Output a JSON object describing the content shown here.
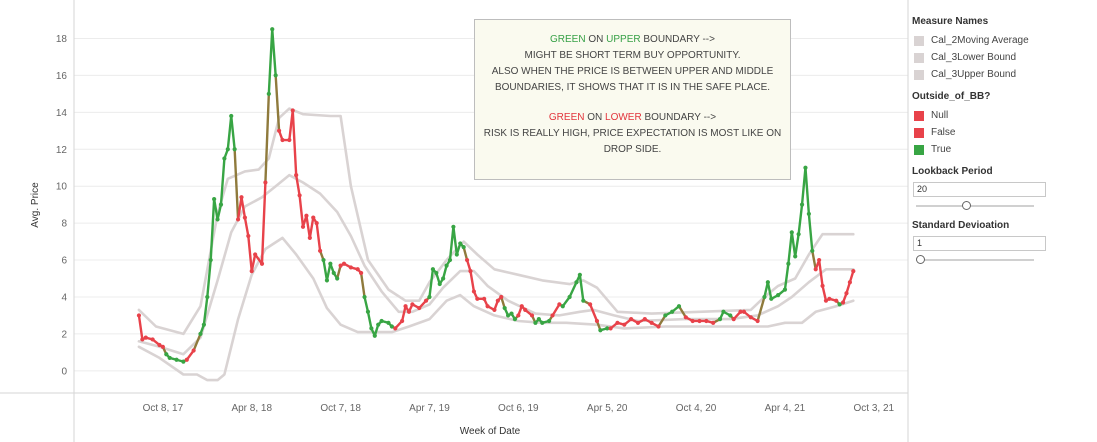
{
  "chart_data": {
    "type": "line",
    "title": "",
    "xlabel": "Week of Date",
    "ylabel": "Avg. Price",
    "ylim": [
      -1.2,
      19
    ],
    "yticks": [
      0,
      2,
      4,
      6,
      8,
      10,
      12,
      14,
      16,
      18
    ],
    "xtick_labels": [
      "Oct 8, 17",
      "Apr 8, 18",
      "Oct 7, 18",
      "Apr 7, 19",
      "Oct 6, 19",
      "Apr 5, 20",
      "Oct 4, 20",
      "Apr 4, 21",
      "Oct 3, 21"
    ],
    "xtick_values": [
      "2017-10-08",
      "2018-04-08",
      "2018-10-07",
      "2019-04-07",
      "2019-10-06",
      "2020-04-05",
      "2020-10-04",
      "2021-04-04",
      "2021-10-03"
    ],
    "grid": "horizontal",
    "colors": {
      "band": "#d9d3d3",
      "red": "#e8424a",
      "green": "#38a544"
    },
    "price": [
      [
        "2017-08-20",
        3.0,
        "False"
      ],
      [
        "2017-08-27",
        1.7,
        "False"
      ],
      [
        "2017-09-03",
        1.8,
        "False"
      ],
      [
        "2017-09-17",
        1.7,
        "False"
      ],
      [
        "2017-10-01",
        1.4,
        "False"
      ],
      [
        "2017-10-08",
        1.3,
        "False"
      ],
      [
        "2017-10-15",
        0.9,
        "True"
      ],
      [
        "2017-10-22",
        0.7,
        "True"
      ],
      [
        "2017-11-05",
        0.6,
        "True"
      ],
      [
        "2017-11-19",
        0.5,
        "True"
      ],
      [
        "2017-11-26",
        0.6,
        "False"
      ],
      [
        "2017-12-10",
        1.1,
        "False"
      ],
      [
        "2017-12-24",
        2.0,
        "True"
      ],
      [
        "2017-12-31",
        2.5,
        "True"
      ],
      [
        "2018-01-07",
        4.0,
        "True"
      ],
      [
        "2018-01-14",
        6.0,
        "True"
      ],
      [
        "2018-01-21",
        9.3,
        "True"
      ],
      [
        "2018-01-28",
        8.2,
        "True"
      ],
      [
        "2018-02-04",
        9.0,
        "True"
      ],
      [
        "2018-02-11",
        11.5,
        "True"
      ],
      [
        "2018-02-18",
        12.0,
        "True"
      ],
      [
        "2018-02-25",
        13.8,
        "True"
      ],
      [
        "2018-03-04",
        12.0,
        "True"
      ],
      [
        "2018-03-11",
        8.2,
        "False"
      ],
      [
        "2018-03-18",
        9.4,
        "False"
      ],
      [
        "2018-03-25",
        8.3,
        "False"
      ],
      [
        "2018-04-01",
        7.3,
        "False"
      ],
      [
        "2018-04-08",
        5.4,
        "False"
      ],
      [
        "2018-04-15",
        6.3,
        "False"
      ],
      [
        "2018-04-29",
        5.8,
        "False"
      ],
      [
        "2018-05-06",
        10.2,
        "False"
      ],
      [
        "2018-05-13",
        15.0,
        "True"
      ],
      [
        "2018-05-20",
        18.5,
        "True"
      ],
      [
        "2018-05-27",
        16.0,
        "True"
      ],
      [
        "2018-06-03",
        13.0,
        "False"
      ],
      [
        "2018-06-10",
        12.5,
        "False"
      ],
      [
        "2018-06-24",
        12.5,
        "False"
      ],
      [
        "2018-07-01",
        14.1,
        "False"
      ],
      [
        "2018-07-08",
        10.6,
        "False"
      ],
      [
        "2018-07-15",
        9.5,
        "False"
      ],
      [
        "2018-07-22",
        7.8,
        "False"
      ],
      [
        "2018-07-29",
        8.4,
        "False"
      ],
      [
        "2018-08-05",
        7.2,
        "False"
      ],
      [
        "2018-08-12",
        8.3,
        "False"
      ],
      [
        "2018-08-19",
        8.0,
        "False"
      ],
      [
        "2018-08-26",
        6.5,
        "False"
      ],
      [
        "2018-09-02",
        6.0,
        "True"
      ],
      [
        "2018-09-09",
        4.9,
        "True"
      ],
      [
        "2018-09-16",
        5.8,
        "True"
      ],
      [
        "2018-09-23",
        5.3,
        "True"
      ],
      [
        "2018-09-30",
        5.0,
        "True"
      ],
      [
        "2018-10-07",
        5.7,
        "False"
      ],
      [
        "2018-10-14",
        5.8,
        "False"
      ],
      [
        "2018-10-28",
        5.6,
        "False"
      ],
      [
        "2018-11-11",
        5.5,
        "False"
      ],
      [
        "2018-11-18",
        5.3,
        "False"
      ],
      [
        "2018-11-25",
        4.0,
        "True"
      ],
      [
        "2018-12-02",
        3.2,
        "True"
      ],
      [
        "2018-12-09",
        2.3,
        "True"
      ],
      [
        "2018-12-16",
        1.9,
        "True"
      ],
      [
        "2018-12-23",
        2.5,
        "True"
      ],
      [
        "2018-12-30",
        2.7,
        "True"
      ],
      [
        "2019-01-13",
        2.6,
        "True"
      ],
      [
        "2019-01-20",
        2.4,
        "True"
      ],
      [
        "2019-01-27",
        2.3,
        "False"
      ],
      [
        "2019-02-10",
        2.7,
        "False"
      ],
      [
        "2019-02-17",
        3.5,
        "False"
      ],
      [
        "2019-02-24",
        3.2,
        "False"
      ],
      [
        "2019-03-03",
        3.6,
        "False"
      ],
      [
        "2019-03-17",
        3.4,
        "False"
      ],
      [
        "2019-03-31",
        3.8,
        "False"
      ],
      [
        "2019-04-07",
        4.0,
        "True"
      ],
      [
        "2019-04-14",
        5.5,
        "True"
      ],
      [
        "2019-04-21",
        5.3,
        "True"
      ],
      [
        "2019-04-28",
        4.7,
        "True"
      ],
      [
        "2019-05-05",
        5.0,
        "True"
      ],
      [
        "2019-05-12",
        5.7,
        "True"
      ],
      [
        "2019-05-19",
        6.0,
        "True"
      ],
      [
        "2019-05-26",
        7.8,
        "True"
      ],
      [
        "2019-06-02",
        6.3,
        "True"
      ],
      [
        "2019-06-09",
        6.9,
        "True"
      ],
      [
        "2019-06-16",
        6.7,
        "True"
      ],
      [
        "2019-06-23",
        6.0,
        "False"
      ],
      [
        "2019-06-30",
        5.4,
        "False"
      ],
      [
        "2019-07-07",
        4.3,
        "False"
      ],
      [
        "2019-07-14",
        3.9,
        "False"
      ],
      [
        "2019-07-28",
        3.9,
        "False"
      ],
      [
        "2019-08-04",
        3.5,
        "False"
      ],
      [
        "2019-08-18",
        3.3,
        "False"
      ],
      [
        "2019-08-25",
        3.8,
        "False"
      ],
      [
        "2019-09-01",
        4.0,
        "False"
      ],
      [
        "2019-09-08",
        3.4,
        "True"
      ],
      [
        "2019-09-15",
        3.0,
        "True"
      ],
      [
        "2019-09-22",
        3.1,
        "True"
      ],
      [
        "2019-09-29",
        2.8,
        "True"
      ],
      [
        "2019-10-06",
        3.0,
        "False"
      ],
      [
        "2019-10-13",
        3.5,
        "False"
      ],
      [
        "2019-10-20",
        3.3,
        "False"
      ],
      [
        "2019-11-03",
        3.0,
        "False"
      ],
      [
        "2019-11-10",
        2.6,
        "True"
      ],
      [
        "2019-11-17",
        2.8,
        "True"
      ],
      [
        "2019-11-24",
        2.6,
        "True"
      ],
      [
        "2019-12-08",
        2.7,
        "True"
      ],
      [
        "2019-12-15",
        3.0,
        "False"
      ],
      [
        "2019-12-29",
        3.6,
        "False"
      ],
      [
        "2020-01-05",
        3.5,
        "True"
      ],
      [
        "2020-01-19",
        4.0,
        "True"
      ],
      [
        "2020-02-02",
        4.8,
        "True"
      ],
      [
        "2020-02-09",
        5.2,
        "True"
      ],
      [
        "2020-02-16",
        3.8,
        "True"
      ],
      [
        "2020-03-01",
        3.6,
        "False"
      ],
      [
        "2020-03-15",
        2.7,
        "False"
      ],
      [
        "2020-03-22",
        2.2,
        "True"
      ],
      [
        "2020-04-05",
        2.3,
        "True"
      ],
      [
        "2020-04-12",
        2.3,
        "False"
      ],
      [
        "2020-04-26",
        2.6,
        "False"
      ],
      [
        "2020-05-10",
        2.5,
        "False"
      ],
      [
        "2020-05-24",
        2.8,
        "False"
      ],
      [
        "2020-06-07",
        2.6,
        "False"
      ],
      [
        "2020-06-21",
        2.8,
        "False"
      ],
      [
        "2020-07-05",
        2.6,
        "False"
      ],
      [
        "2020-07-19",
        2.4,
        "False"
      ],
      [
        "2020-08-02",
        3.0,
        "True"
      ],
      [
        "2020-08-16",
        3.2,
        "True"
      ],
      [
        "2020-08-30",
        3.5,
        "True"
      ],
      [
        "2020-09-13",
        2.9,
        "False"
      ],
      [
        "2020-09-27",
        2.7,
        "False"
      ],
      [
        "2020-10-11",
        2.7,
        "False"
      ],
      [
        "2020-10-25",
        2.7,
        "False"
      ],
      [
        "2020-11-08",
        2.6,
        "False"
      ],
      [
        "2020-11-22",
        2.8,
        "True"
      ],
      [
        "2020-11-29",
        3.2,
        "True"
      ],
      [
        "2020-12-13",
        3.0,
        "True"
      ],
      [
        "2020-12-20",
        2.8,
        "False"
      ],
      [
        "2021-01-03",
        3.2,
        "False"
      ],
      [
        "2021-01-10",
        3.2,
        "False"
      ],
      [
        "2021-01-24",
        2.9,
        "False"
      ],
      [
        "2021-02-07",
        2.7,
        "False"
      ],
      [
        "2021-02-21",
        4.0,
        "True"
      ],
      [
        "2021-02-28",
        4.8,
        "True"
      ],
      [
        "2021-03-07",
        3.9,
        "True"
      ],
      [
        "2021-03-21",
        4.1,
        "True"
      ],
      [
        "2021-04-04",
        4.4,
        "True"
      ],
      [
        "2021-04-11",
        5.8,
        "True"
      ],
      [
        "2021-04-18",
        7.5,
        "True"
      ],
      [
        "2021-04-25",
        6.2,
        "True"
      ],
      [
        "2021-05-02",
        7.4,
        "True"
      ],
      [
        "2021-05-09",
        9.0,
        "True"
      ],
      [
        "2021-05-16",
        11.0,
        "True"
      ],
      [
        "2021-05-23",
        8.5,
        "True"
      ],
      [
        "2021-05-30",
        6.5,
        "True"
      ],
      [
        "2021-06-06",
        5.5,
        "False"
      ],
      [
        "2021-06-13",
        6.0,
        "False"
      ],
      [
        "2021-06-20",
        4.6,
        "False"
      ],
      [
        "2021-06-27",
        3.8,
        "False"
      ],
      [
        "2021-07-04",
        3.9,
        "False"
      ],
      [
        "2021-07-18",
        3.8,
        "False"
      ],
      [
        "2021-07-25",
        3.6,
        "True"
      ],
      [
        "2021-08-01",
        3.7,
        "False"
      ],
      [
        "2021-08-08",
        4.2,
        "False"
      ],
      [
        "2021-08-15",
        4.8,
        "False"
      ],
      [
        "2021-08-22",
        5.4,
        "False"
      ]
    ],
    "upper_band": [
      [
        "2017-08-20",
        3.3
      ],
      [
        "2017-09-24",
        2.4
      ],
      [
        "2017-11-19",
        2.0
      ],
      [
        "2017-12-24",
        3.5
      ],
      [
        "2018-01-28",
        8.5
      ],
      [
        "2018-02-18",
        10.4
      ],
      [
        "2018-03-25",
        10.8
      ],
      [
        "2018-04-22",
        10.9
      ],
      [
        "2018-05-13",
        11.5
      ],
      [
        "2018-06-03",
        13.7
      ],
      [
        "2018-06-24",
        14.2
      ],
      [
        "2018-07-22",
        13.9
      ],
      [
        "2018-09-16",
        13.8
      ],
      [
        "2018-10-07",
        13.8
      ],
      [
        "2018-10-28",
        10.0
      ],
      [
        "2018-12-02",
        6.0
      ],
      [
        "2019-01-13",
        4.4
      ],
      [
        "2019-02-17",
        3.8
      ],
      [
        "2019-03-17",
        3.8
      ],
      [
        "2019-04-07",
        4.8
      ],
      [
        "2019-05-12",
        6.0
      ],
      [
        "2019-06-16",
        7.0
      ],
      [
        "2019-07-14",
        6.3
      ],
      [
        "2019-08-18",
        5.5
      ],
      [
        "2019-10-06",
        5.2
      ],
      [
        "2019-11-24",
        4.9
      ],
      [
        "2020-01-19",
        4.7
      ],
      [
        "2020-02-16",
        4.9
      ],
      [
        "2020-03-15",
        4.5
      ],
      [
        "2020-04-26",
        3.2
      ],
      [
        "2020-07-05",
        3.1
      ],
      [
        "2020-10-11",
        3.2
      ],
      [
        "2021-01-24",
        3.3
      ],
      [
        "2021-02-21",
        4.0
      ],
      [
        "2021-03-21",
        4.6
      ],
      [
        "2021-04-25",
        5.0
      ],
      [
        "2021-05-23",
        6.3
      ],
      [
        "2021-06-20",
        7.4
      ],
      [
        "2021-08-22",
        7.4
      ]
    ],
    "middle_band": [
      [
        "2017-08-20",
        1.6
      ],
      [
        "2017-10-01",
        1.3
      ],
      [
        "2017-11-19",
        0.9
      ],
      [
        "2017-12-24",
        1.8
      ],
      [
        "2018-01-28",
        4.9
      ],
      [
        "2018-02-25",
        7.5
      ],
      [
        "2018-03-25",
        8.9
      ],
      [
        "2018-04-29",
        9.4
      ],
      [
        "2018-05-27",
        10.0
      ],
      [
        "2018-06-24",
        10.6
      ],
      [
        "2018-07-22",
        10.2
      ],
      [
        "2018-08-26",
        9.6
      ],
      [
        "2018-09-30",
        8.6
      ],
      [
        "2018-10-28",
        7.3
      ],
      [
        "2018-11-25",
        5.7
      ],
      [
        "2018-12-30",
        4.3
      ],
      [
        "2019-02-03",
        3.2
      ],
      [
        "2019-03-03",
        3.2
      ],
      [
        "2019-04-07",
        3.6
      ],
      [
        "2019-05-05",
        4.5
      ],
      [
        "2019-06-09",
        5.4
      ],
      [
        "2019-07-07",
        5.4
      ],
      [
        "2019-08-04",
        4.6
      ],
      [
        "2019-09-15",
        3.8
      ],
      [
        "2019-11-10",
        3.1
      ],
      [
        "2019-12-29",
        3.0
      ],
      [
        "2020-02-09",
        3.2
      ],
      [
        "2020-03-08",
        3.3
      ],
      [
        "2020-04-19",
        3.0
      ],
      [
        "2020-06-07",
        2.7
      ],
      [
        "2020-09-13",
        2.8
      ],
      [
        "2020-12-13",
        2.8
      ],
      [
        "2021-02-07",
        3.0
      ],
      [
        "2021-03-21",
        3.5
      ],
      [
        "2021-04-18",
        4.0
      ],
      [
        "2021-05-23",
        4.8
      ],
      [
        "2021-06-27",
        5.5
      ],
      [
        "2021-08-22",
        5.5
      ]
    ],
    "lower_band": [
      [
        "2017-08-20",
        1.3
      ],
      [
        "2017-10-01",
        0.7
      ],
      [
        "2017-11-19",
        -0.2
      ],
      [
        "2017-12-17",
        -0.2
      ],
      [
        "2018-01-07",
        -0.5
      ],
      [
        "2018-01-28",
        -0.5
      ],
      [
        "2018-02-11",
        -0.2
      ],
      [
        "2018-03-11",
        2.8
      ],
      [
        "2018-04-08",
        5.2
      ],
      [
        "2018-05-06",
        6.6
      ],
      [
        "2018-06-10",
        7.2
      ],
      [
        "2018-07-08",
        6.3
      ],
      [
        "2018-08-12",
        5.0
      ],
      [
        "2018-09-09",
        3.4
      ],
      [
        "2018-10-07",
        2.5
      ],
      [
        "2018-11-11",
        2.1
      ],
      [
        "2018-12-16",
        2.1
      ],
      [
        "2019-01-20",
        2.1
      ],
      [
        "2019-02-24",
        2.4
      ],
      [
        "2019-04-07",
        2.8
      ],
      [
        "2019-05-12",
        3.8
      ],
      [
        "2019-06-09",
        4.1
      ],
      [
        "2019-07-07",
        3.5
      ],
      [
        "2019-08-18",
        3.0
      ],
      [
        "2019-10-06",
        2.7
      ],
      [
        "2019-11-24",
        2.6
      ],
      [
        "2020-01-12",
        2.6
      ],
      [
        "2020-03-15",
        2.5
      ],
      [
        "2020-05-10",
        2.3
      ],
      [
        "2020-08-02",
        2.4
      ],
      [
        "2020-11-08",
        2.4
      ],
      [
        "2021-01-10",
        2.4
      ],
      [
        "2021-02-28",
        2.4
      ],
      [
        "2021-04-04",
        2.6
      ],
      [
        "2021-05-09",
        2.6
      ],
      [
        "2021-06-06",
        3.2
      ],
      [
        "2021-07-18",
        3.5
      ],
      [
        "2021-08-22",
        3.8
      ]
    ]
  },
  "annotation": {
    "line1_a": "GREEN",
    "line1_b": "ON",
    "line1_c": "UPPER",
    "line1_d": "BOUNDARY -->",
    "line2": "MIGHT BE SHORT TERM BUY OPPORTUNITY.",
    "line3": "ALSO WHEN THE PRICE IS BETWEEN UPPER AND MIDDLE",
    "line4": "BOUNDARIES, IT SHOWS THAT IT IS IN THE SAFE PLACE.",
    "line5_a": "GREEN",
    "line5_b": "ON",
    "line5_c": "LOWER",
    "line5_d": "BOUNDARY -->",
    "line6": "RISK IS REALLY HIGH, PRICE EXPECTATION IS MOST LIKE ON",
    "line7": "DROP SIDE."
  },
  "legend_measures": {
    "title": "Measure Names",
    "items": [
      {
        "label": "Cal_2Moving Average",
        "color": "#d9d3d3"
      },
      {
        "label": "Cal_3Lower Bound",
        "color": "#d9d3d3"
      },
      {
        "label": "Cal_3Upper Bound",
        "color": "#d9d3d3"
      }
    ]
  },
  "legend_outside": {
    "title": "Outside_of_BB?",
    "items": [
      {
        "label": "Null",
        "color": "#e8424a"
      },
      {
        "label": "False",
        "color": "#e8424a"
      },
      {
        "label": "True",
        "color": "#38a544"
      }
    ]
  },
  "params": {
    "lookback": {
      "title": "Lookback Period",
      "value": "20",
      "slider_fraction": 0.42
    },
    "stddev": {
      "title": "Standard Devioation",
      "value": "1",
      "slider_fraction": 0.0
    }
  }
}
